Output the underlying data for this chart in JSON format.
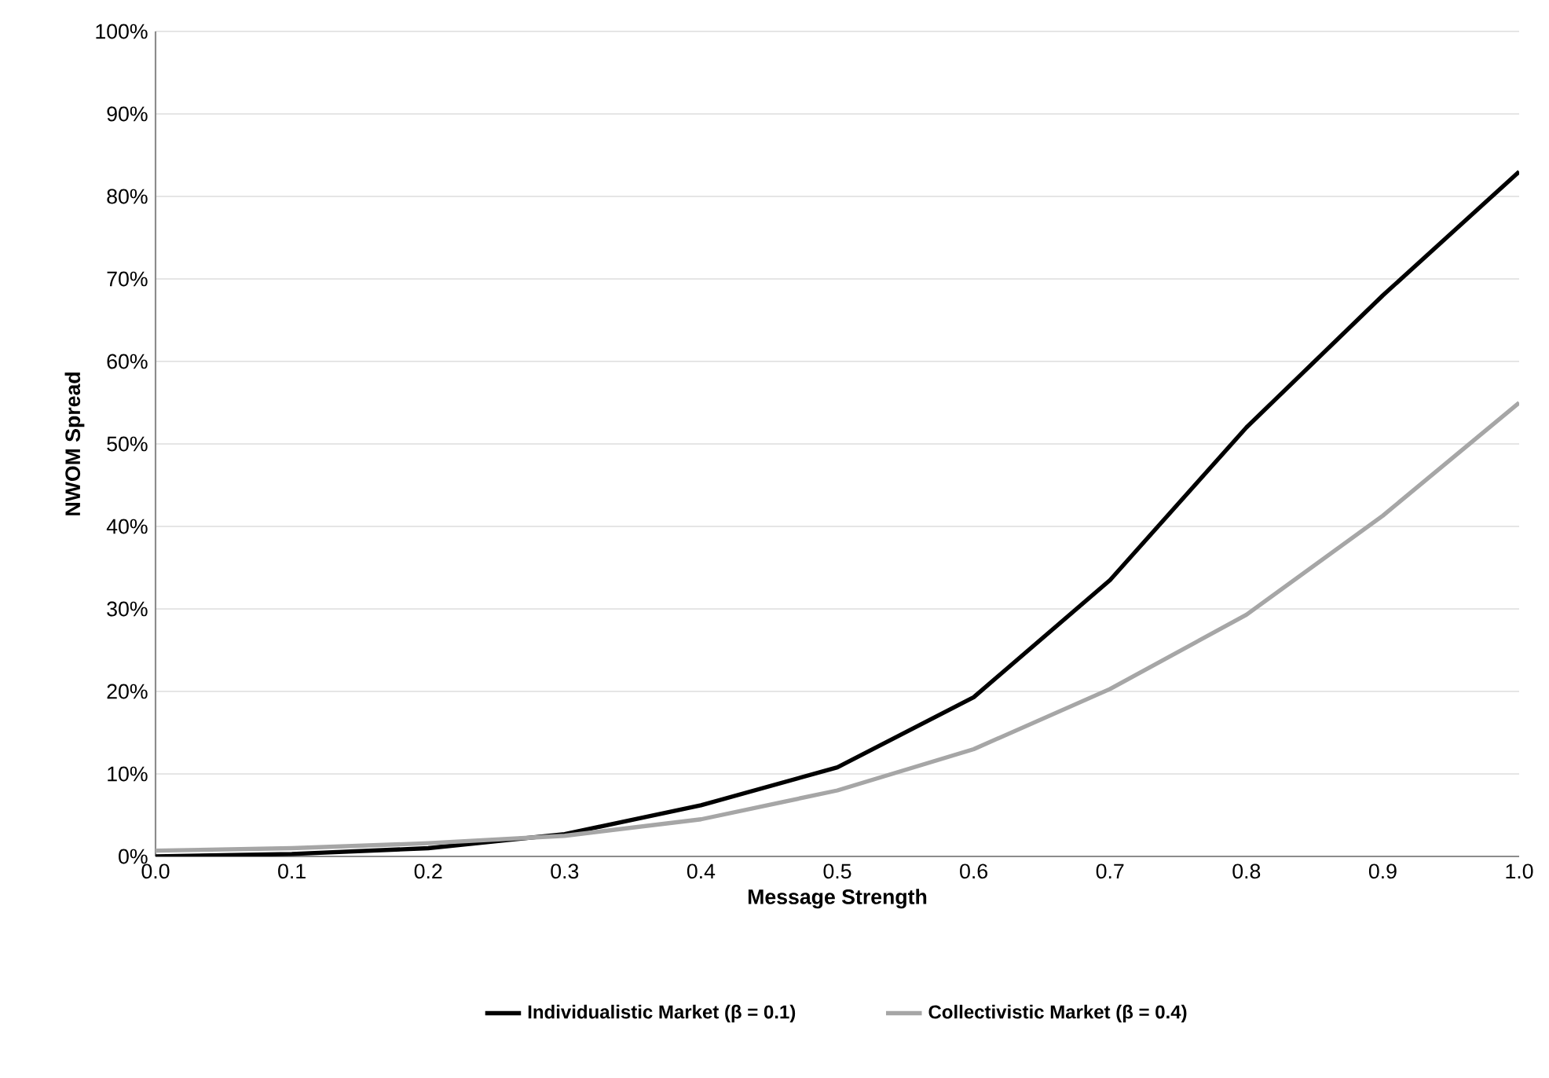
{
  "chart_data": {
    "type": "line",
    "xlabel": "Message Strength",
    "ylabel": "NWOM Spread",
    "x": [
      0.0,
      0.1,
      0.2,
      0.3,
      0.4,
      0.5,
      0.6,
      0.7,
      0.8,
      0.9,
      1.0
    ],
    "series": [
      {
        "name": "Individualistic Market (β = 0.1)",
        "color": "#000000",
        "values": [
          0.0,
          0.3,
          1.0,
          2.7,
          6.2,
          10.8,
          19.3,
          33.5,
          52,
          68,
          83
        ]
      },
      {
        "name": "Collectivistic Market (β = 0.4)",
        "color": "#a6a6a6",
        "values": [
          0.7,
          1.0,
          1.6,
          2.5,
          4.5,
          8,
          13,
          20.3,
          29.3,
          41.3,
          55
        ]
      }
    ],
    "xlim": [
      0,
      1
    ],
    "ylim": [
      0,
      100
    ],
    "xticks": [
      {
        "value": 0,
        "label": "0.0"
      },
      {
        "value": 0.1,
        "label": "0.1"
      },
      {
        "value": 0.2,
        "label": "0.2"
      },
      {
        "value": 0.3,
        "label": "0.3"
      },
      {
        "value": 0.4,
        "label": "0.4"
      },
      {
        "value": 0.5,
        "label": "0.5"
      },
      {
        "value": 0.6,
        "label": "0.6"
      },
      {
        "value": 0.7,
        "label": "0.7"
      },
      {
        "value": 0.8,
        "label": "0.8"
      },
      {
        "value": 0.9,
        "label": "0.9"
      },
      {
        "value": 1,
        "label": "1.0"
      }
    ],
    "yticks": [
      {
        "value": 0,
        "label": "0%"
      },
      {
        "value": 10,
        "label": "10%"
      },
      {
        "value": 20,
        "label": "20%"
      },
      {
        "value": 30,
        "label": "30%"
      },
      {
        "value": 40,
        "label": "40%"
      },
      {
        "value": 50,
        "label": "50%"
      },
      {
        "value": 60,
        "label": "60%"
      },
      {
        "value": 70,
        "label": "70%"
      },
      {
        "value": 80,
        "label": "80%"
      },
      {
        "value": 90,
        "label": "90%"
      },
      {
        "value": 100,
        "label": "100%"
      }
    ],
    "grid": "y",
    "legend": "bottom",
    "marker": "none",
    "line_style": "solid"
  }
}
